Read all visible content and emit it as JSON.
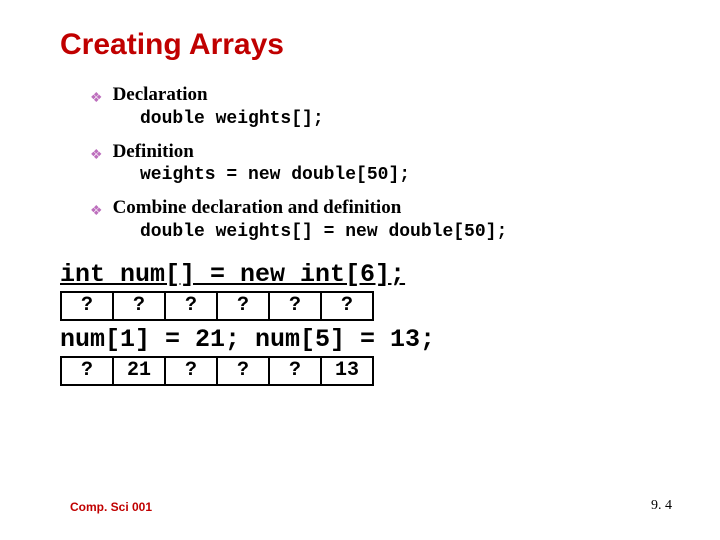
{
  "colors": {
    "title": "#c00000",
    "diamond": "#bd6fbd",
    "footer": "#c00000",
    "text": "#000000"
  },
  "title": "Creating Arrays",
  "bullets": [
    {
      "heading": "Declaration",
      "code": "double weights[];"
    },
    {
      "heading": "Definition",
      "code": "weights = new double[50];"
    },
    {
      "heading": "Combine declaration and definition",
      "code": "double weights[] = new double[50];"
    }
  ],
  "example": {
    "decl": "int num[] = new int[6];",
    "row1": [
      "?",
      "?",
      "?",
      "?",
      "?",
      "?"
    ],
    "assign": "num[1] = 21; num[5] = 13;",
    "row2": [
      "?",
      "21",
      "?",
      "?",
      "?",
      "13"
    ]
  },
  "footer": {
    "left": "Comp. Sci 001",
    "right": "9. 4"
  }
}
